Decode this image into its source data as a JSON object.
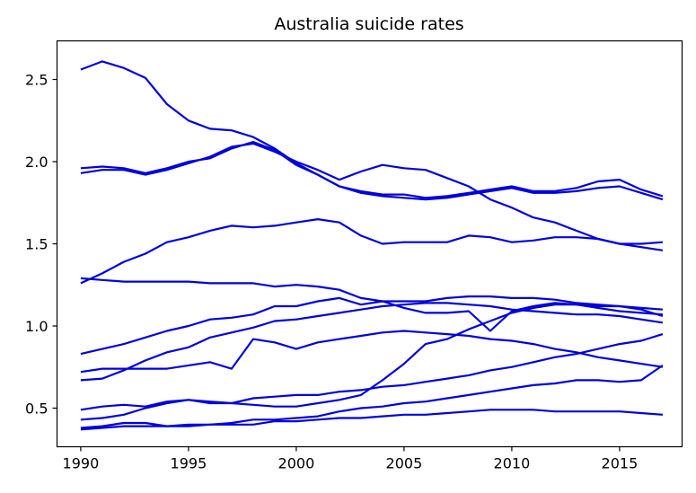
{
  "chart_data": {
    "type": "line",
    "title": "Australia suicide rates",
    "xlabel": "",
    "ylabel": "",
    "xlim": [
      1988.9,
      2017.9
    ],
    "ylim": [
      0.265,
      2.735
    ],
    "xticks": [
      1990,
      1995,
      2000,
      2005,
      2010,
      2015
    ],
    "yticks": [
      0.5,
      1.0,
      1.5,
      2.0,
      2.5
    ],
    "grid": false,
    "legend": "none",
    "line_color": "#0000dd",
    "x": [
      1990,
      1991,
      1992,
      1993,
      1994,
      1995,
      1996,
      1997,
      1998,
      1999,
      2000,
      2001,
      2002,
      2003,
      2004,
      2005,
      2006,
      2007,
      2008,
      2009,
      2010,
      2011,
      2012,
      2013,
      2014,
      2015,
      2016,
      2017
    ],
    "series": [
      {
        "values": [
          2.56,
          2.61,
          2.57,
          2.51,
          2.35,
          2.25,
          2.2,
          2.19,
          2.15,
          2.08,
          1.99,
          1.92,
          1.85,
          1.81,
          1.79,
          1.78,
          1.77,
          1.78,
          1.8,
          1.82,
          1.84,
          1.81,
          1.81,
          1.82,
          1.84,
          1.85,
          1.81,
          1.77
        ]
      },
      {
        "values": [
          1.96,
          1.97,
          1.96,
          1.93,
          1.96,
          2.0,
          2.02,
          2.08,
          2.12,
          2.07,
          1.98,
          1.92,
          1.85,
          1.82,
          1.8,
          1.8,
          1.78,
          1.79,
          1.81,
          1.83,
          1.85,
          1.82,
          1.82,
          1.84,
          1.88,
          1.89,
          1.83,
          1.79
        ]
      },
      {
        "values": [
          1.93,
          1.95,
          1.95,
          1.92,
          1.95,
          1.99,
          2.03,
          2.09,
          2.11,
          2.06,
          2.0,
          1.95,
          1.89,
          1.94,
          1.98,
          1.96,
          1.95,
          1.9,
          1.85,
          1.77,
          1.72,
          1.66,
          1.63,
          1.58,
          1.53,
          1.5,
          1.48,
          1.46
        ]
      },
      {
        "values": [
          1.26,
          1.32,
          1.39,
          1.44,
          1.51,
          1.54,
          1.58,
          1.61,
          1.6,
          1.61,
          1.63,
          1.65,
          1.63,
          1.55,
          1.5,
          1.51,
          1.51,
          1.51,
          1.55,
          1.54,
          1.51,
          1.52,
          1.54,
          1.54,
          1.53,
          1.5,
          1.5,
          1.51
        ]
      },
      {
        "values": [
          1.29,
          1.28,
          1.27,
          1.27,
          1.27,
          1.27,
          1.26,
          1.26,
          1.26,
          1.24,
          1.25,
          1.24,
          1.22,
          1.17,
          1.15,
          1.11,
          1.08,
          1.08,
          1.09,
          0.97,
          1.09,
          1.12,
          1.14,
          1.13,
          1.12,
          1.12,
          1.1,
          1.06
        ]
      },
      {
        "values": [
          0.83,
          0.86,
          0.89,
          0.93,
          0.97,
          1.0,
          1.04,
          1.05,
          1.07,
          1.12,
          1.12,
          1.15,
          1.17,
          1.13,
          1.15,
          1.15,
          1.15,
          1.17,
          1.18,
          1.18,
          1.17,
          1.17,
          1.16,
          1.14,
          1.13,
          1.12,
          1.11,
          1.1
        ]
      },
      {
        "values": [
          0.72,
          0.74,
          0.74,
          0.74,
          0.74,
          0.76,
          0.78,
          0.74,
          0.92,
          0.9,
          0.86,
          0.9,
          0.92,
          0.94,
          0.96,
          0.97,
          0.96,
          0.95,
          0.94,
          0.92,
          0.91,
          0.89,
          0.86,
          0.84,
          0.81,
          0.79,
          0.77,
          0.75
        ]
      },
      {
        "values": [
          0.67,
          0.68,
          0.73,
          0.79,
          0.84,
          0.87,
          0.93,
          0.96,
          0.99,
          1.03,
          1.04,
          1.06,
          1.08,
          1.1,
          1.12,
          1.13,
          1.14,
          1.14,
          1.13,
          1.12,
          1.1,
          1.09,
          1.08,
          1.07,
          1.07,
          1.06,
          1.04,
          1.02
        ]
      },
      {
        "values": [
          0.49,
          0.51,
          0.52,
          0.51,
          0.54,
          0.55,
          0.54,
          0.53,
          0.56,
          0.57,
          0.58,
          0.58,
          0.6,
          0.61,
          0.63,
          0.64,
          0.66,
          0.68,
          0.7,
          0.73,
          0.75,
          0.78,
          0.81,
          0.83,
          0.86,
          0.89,
          0.91,
          0.95
        ]
      },
      {
        "values": [
          0.43,
          0.44,
          0.46,
          0.5,
          0.53,
          0.55,
          0.53,
          0.53,
          0.52,
          0.51,
          0.51,
          0.53,
          0.55,
          0.58,
          0.67,
          0.77,
          0.89,
          0.92,
          0.98,
          1.03,
          1.08,
          1.11,
          1.13,
          1.13,
          1.11,
          1.09,
          1.08,
          1.07
        ]
      },
      {
        "values": [
          0.38,
          0.39,
          0.41,
          0.41,
          0.39,
          0.39,
          0.4,
          0.41,
          0.43,
          0.43,
          0.44,
          0.45,
          0.48,
          0.5,
          0.51,
          0.53,
          0.54,
          0.56,
          0.58,
          0.6,
          0.62,
          0.64,
          0.65,
          0.67,
          0.67,
          0.66,
          0.67,
          0.76
        ]
      },
      {
        "values": [
          0.37,
          0.38,
          0.39,
          0.39,
          0.39,
          0.4,
          0.4,
          0.4,
          0.4,
          0.42,
          0.42,
          0.43,
          0.44,
          0.44,
          0.45,
          0.46,
          0.46,
          0.47,
          0.48,
          0.49,
          0.49,
          0.49,
          0.48,
          0.48,
          0.48,
          0.48,
          0.47,
          0.46
        ]
      }
    ]
  }
}
